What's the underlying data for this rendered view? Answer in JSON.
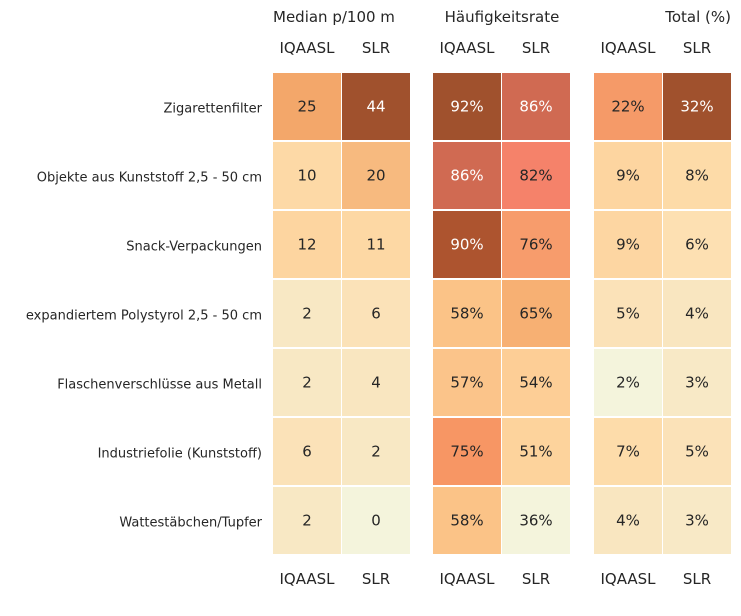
{
  "chart_data": {
    "type": "heatmap",
    "row_labels": [
      "Zigarettenfilter",
      "Objekte aus Kunststoff 2,5 - 50 cm",
      "Snack-Verpackungen",
      "expandiertem Polystyrol 2,5 - 50 cm",
      "Flaschenverschlüsse aus Metall",
      "Industriefolie (Kunststoff)",
      "Wattestäbchen/Tupfer"
    ],
    "panels": [
      {
        "title": "Median p/100 m",
        "columns": [
          "IQAASL",
          "SLR"
        ],
        "cells": [
          [
            "25",
            "44"
          ],
          [
            "10",
            "20"
          ],
          [
            "12",
            "11"
          ],
          [
            "2",
            "6"
          ],
          [
            "2",
            "4"
          ],
          [
            "6",
            "2"
          ],
          [
            "2",
            "0"
          ]
        ],
        "colors": [
          [
            "#f3a76a",
            "#a0512d"
          ],
          [
            "#fdd9a6",
            "#f7ba7f"
          ],
          [
            "#fdd5a0",
            "#fdd8a4"
          ],
          [
            "#f8e8c4",
            "#fbe2b8"
          ],
          [
            "#f8e8c4",
            "#f9e6c0"
          ],
          [
            "#fbe2b8",
            "#f8e8c4"
          ],
          [
            "#f8e8c4",
            "#f4f4dc"
          ]
        ]
      },
      {
        "title": "Häufigkeitsrate",
        "columns": [
          "IQAASL",
          "SLR"
        ],
        "cells": [
          [
            "92%",
            "86%"
          ],
          [
            "86%",
            "82%"
          ],
          [
            "90%",
            "76%"
          ],
          [
            "58%",
            "65%"
          ],
          [
            "57%",
            "54%"
          ],
          [
            "75%",
            "51%"
          ],
          [
            "58%",
            "36%"
          ]
        ],
        "colors": [
          [
            "#a0512d",
            "#d06a52"
          ],
          [
            "#d06a52",
            "#f5826a"
          ],
          [
            "#ad542f",
            "#f79c6c"
          ],
          [
            "#fbc387",
            "#f7b073"
          ],
          [
            "#fbc48a",
            "#fdce96"
          ],
          [
            "#f79664",
            "#fdd39c"
          ],
          [
            "#fbc387",
            "#f4f4dc"
          ]
        ]
      },
      {
        "title": "Total (%)",
        "columns": [
          "IQAASL",
          "SLR"
        ],
        "cells": [
          [
            "22%",
            "32%"
          ],
          [
            "9%",
            "8%"
          ],
          [
            "9%",
            "6%"
          ],
          [
            "5%",
            "4%"
          ],
          [
            "2%",
            "3%"
          ],
          [
            "7%",
            "5%"
          ],
          [
            "4%",
            "3%"
          ]
        ],
        "colors": [
          [
            "#f59a68",
            "#a0512d"
          ],
          [
            "#fdd5a0",
            "#fddba8"
          ],
          [
            "#fdd6a2",
            "#fde0b2"
          ],
          [
            "#fbe2b8",
            "#f9e6c0"
          ],
          [
            "#f4f4dc",
            "#f8e9c6"
          ],
          [
            "#fddcaa",
            "#fbe2b8"
          ],
          [
            "#f9e6c0",
            "#f8e9c6"
          ]
        ]
      }
    ],
    "text_color_dark": "#262626",
    "text_color_light": "#ffffff",
    "grid": false
  }
}
